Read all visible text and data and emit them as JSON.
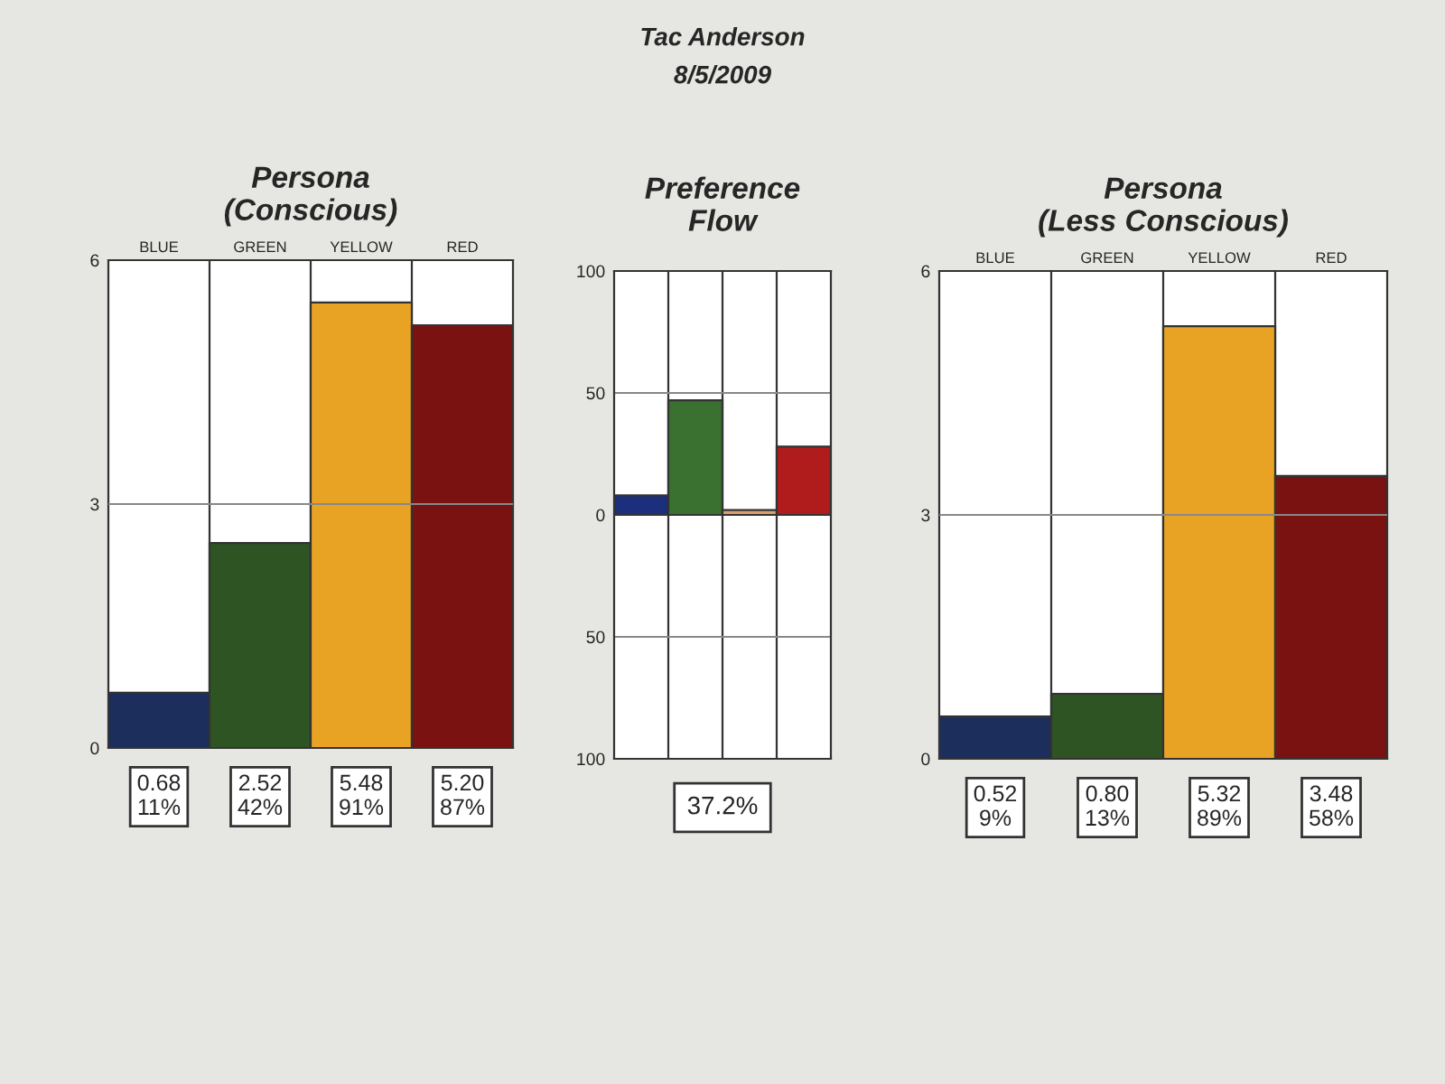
{
  "chart_data": [
    {
      "type": "bar",
      "title": "Persona\n(Conscious)",
      "categories": [
        "BLUE",
        "GREEN",
        "YELLOW",
        "RED"
      ],
      "values": [
        0.68,
        2.52,
        5.48,
        5.2
      ],
      "colors": [
        "#1c2f5c",
        "#2e5424",
        "#e9a324",
        "#7a1212"
      ],
      "value_labels": [
        "0.68\n11%",
        "2.52\n42%",
        "5.48\n91%",
        "5.20\n87%"
      ],
      "ylim": [
        0,
        6
      ],
      "yticks": [
        0,
        3,
        6
      ],
      "grid": "x",
      "ref_lines": [
        {
          "axis": "y",
          "value": 3,
          "color": "#888888"
        }
      ]
    },
    {
      "type": "bar",
      "title": "Preference\nFlow",
      "categories": [
        null,
        null,
        null,
        null
      ],
      "values": [
        8,
        47,
        2,
        28
      ],
      "colors": [
        "#1c2f7c",
        "#3a7030",
        "#d8a070",
        "#b01c1c"
      ],
      "ylim": [
        -100,
        100
      ],
      "yticks": [
        {
          "value": -100,
          "label": "100"
        },
        {
          "value": -50,
          "label": "50"
        },
        0,
        50,
        100
      ],
      "grid": true,
      "tick_labels": "y",
      "annotations": [
        "Tac Anderson",
        "8/5/2009",
        "37.2%"
      ]
    },
    {
      "type": "bar",
      "title": "Persona\n(Less Conscious)",
      "categories": [
        "BLUE",
        "GREEN",
        "YELLOW",
        "RED"
      ],
      "values": [
        0.52,
        0.8,
        5.32,
        3.48
      ],
      "colors": [
        "#1c2f5c",
        "#2e5424",
        "#e9a324",
        "#7a1212"
      ],
      "value_labels": [
        "0.52\n9%",
        "0.80\n13%",
        "5.32\n89%",
        "3.48\n58%"
      ],
      "ylim": [
        0,
        6
      ],
      "yticks": [
        0,
        3,
        6
      ],
      "grid": "x",
      "ref_lines": [
        {
          "axis": "y",
          "value": 3,
          "color": "#888888"
        }
      ]
    }
  ]
}
